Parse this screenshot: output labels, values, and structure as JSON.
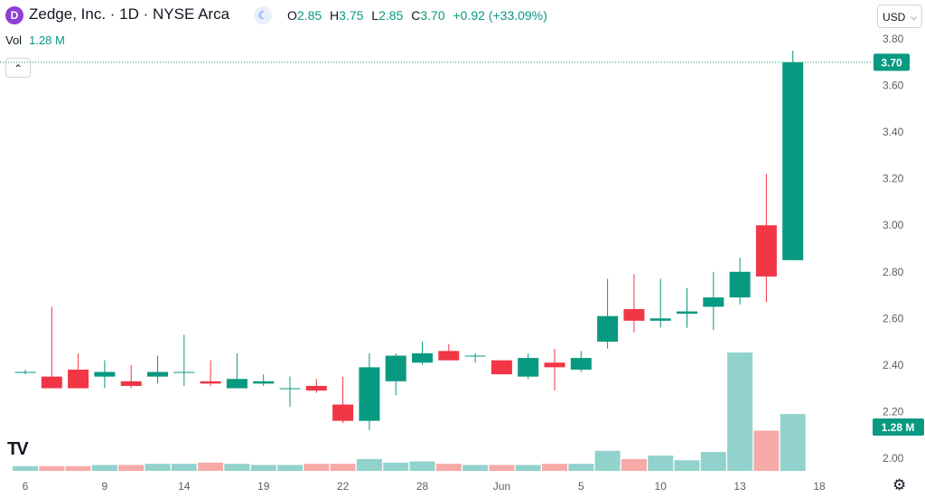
{
  "header": {
    "logo_glyph": "D",
    "symbol_title": "Zedge, Inc. · 1D · NYSE Arca",
    "ohlc": {
      "o_label": "O",
      "o": "2.85",
      "h_label": "H",
      "h": "3.75",
      "l_label": "L",
      "l": "2.85",
      "c_label": "C",
      "c": "3.70",
      "change": "+0.92 (+33.09%)"
    },
    "currency": "USD",
    "volume_label": "Vol",
    "volume_value": "1.28 M"
  },
  "last_price_badge": "3.70",
  "volume_badge": "1.28 M",
  "colors": {
    "up": "#089981",
    "down": "#f23645",
    "vol_up": "#92d2cc",
    "vol_down": "#f7a9a7"
  },
  "icons": {
    "moon": "moon-icon",
    "collapse": "chevron-up-icon",
    "settings": "gear-icon",
    "brand": "tradingview-logo"
  },
  "chart_data": {
    "type": "candlestick",
    "y_ticks": [
      "2.00",
      "2.20",
      "2.40",
      "2.60",
      "2.80",
      "3.00",
      "3.20",
      "3.40",
      "3.60",
      "3.80"
    ],
    "ylim": [
      1.98,
      3.82
    ],
    "x_ticks": [
      "6",
      "9",
      "14",
      "19",
      "22",
      "28",
      "Jun",
      "5",
      "10",
      "13",
      "18"
    ],
    "x_tick_index": [
      0.5,
      3.5,
      6.5,
      9.5,
      12.5,
      15.5,
      18.5,
      21.5,
      24.5,
      27.5,
      30.5
    ],
    "candles": [
      {
        "o": 2.37,
        "h": 2.38,
        "l": 2.36,
        "c": 2.37
      },
      {
        "o": 2.35,
        "h": 2.65,
        "l": 2.3,
        "c": 2.3
      },
      {
        "o": 2.38,
        "h": 2.45,
        "l": 2.3,
        "c": 2.3
      },
      {
        "o": 2.35,
        "h": 2.42,
        "l": 2.3,
        "c": 2.37
      },
      {
        "o": 2.33,
        "h": 2.4,
        "l": 2.3,
        "c": 2.31
      },
      {
        "o": 2.35,
        "h": 2.44,
        "l": 2.32,
        "c": 2.37
      },
      {
        "o": 2.37,
        "h": 2.53,
        "l": 2.31,
        "c": 2.37
      },
      {
        "o": 2.33,
        "h": 2.42,
        "l": 2.31,
        "c": 2.32
      },
      {
        "o": 2.3,
        "h": 2.45,
        "l": 2.3,
        "c": 2.34
      },
      {
        "o": 2.32,
        "h": 2.36,
        "l": 2.31,
        "c": 2.33
      },
      {
        "o": 2.3,
        "h": 2.35,
        "l": 2.22,
        "c": 2.3
      },
      {
        "o": 2.31,
        "h": 2.34,
        "l": 2.28,
        "c": 2.29
      },
      {
        "o": 2.23,
        "h": 2.35,
        "l": 2.15,
        "c": 2.16
      },
      {
        "o": 2.16,
        "h": 2.45,
        "l": 2.12,
        "c": 2.39
      },
      {
        "o": 2.33,
        "h": 2.45,
        "l": 2.27,
        "c": 2.44
      },
      {
        "o": 2.41,
        "h": 2.5,
        "l": 2.4,
        "c": 2.45
      },
      {
        "o": 2.46,
        "h": 2.49,
        "l": 2.42,
        "c": 2.42
      },
      {
        "o": 2.44,
        "h": 2.45,
        "l": 2.41,
        "c": 2.44
      },
      {
        "o": 2.42,
        "h": 2.42,
        "l": 2.36,
        "c": 2.36
      },
      {
        "o": 2.35,
        "h": 2.45,
        "l": 2.34,
        "c": 2.43
      },
      {
        "o": 2.41,
        "h": 2.47,
        "l": 2.29,
        "c": 2.39
      },
      {
        "o": 2.38,
        "h": 2.46,
        "l": 2.37,
        "c": 2.43
      },
      {
        "o": 2.5,
        "h": 2.77,
        "l": 2.47,
        "c": 2.61
      },
      {
        "o": 2.64,
        "h": 2.79,
        "l": 2.54,
        "c": 2.59
      },
      {
        "o": 2.59,
        "h": 2.77,
        "l": 2.56,
        "c": 2.6
      },
      {
        "o": 2.62,
        "h": 2.73,
        "l": 2.56,
        "c": 2.63
      },
      {
        "o": 2.65,
        "h": 2.8,
        "l": 2.55,
        "c": 2.69
      },
      {
        "o": 2.69,
        "h": 2.86,
        "l": 2.66,
        "c": 2.8
      },
      {
        "o": 3.0,
        "h": 3.22,
        "l": 2.67,
        "c": 2.78
      },
      {
        "o": 2.85,
        "h": 3.75,
        "l": 2.85,
        "c": 3.7
      }
    ],
    "volume_rel": [
      0.04,
      0.04,
      0.04,
      0.05,
      0.05,
      0.06,
      0.06,
      0.07,
      0.06,
      0.05,
      0.05,
      0.06,
      0.06,
      0.1,
      0.07,
      0.08,
      0.06,
      0.05,
      0.05,
      0.05,
      0.06,
      0.06,
      0.17,
      0.1,
      0.13,
      0.09,
      0.16,
      1.0,
      0.34,
      0.48
    ]
  }
}
